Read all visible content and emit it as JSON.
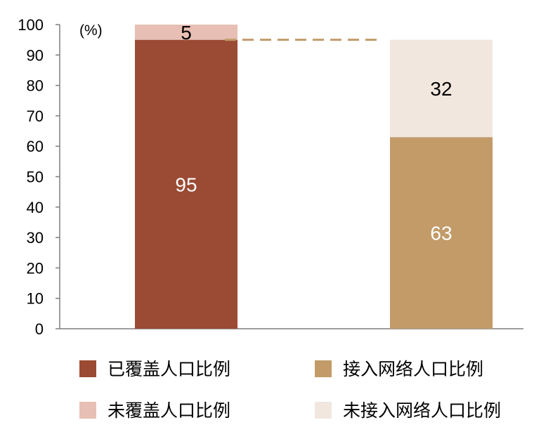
{
  "chart_data": {
    "type": "bar",
    "stacked": true,
    "categories": [
      "",
      ""
    ],
    "unit_label": "(%)",
    "ylim": [
      0,
      100
    ],
    "yticks": [
      0,
      10,
      20,
      30,
      40,
      50,
      60,
      70,
      80,
      90,
      100
    ],
    "grid": false,
    "legend_position": "bottom",
    "series": [
      {
        "name": "已覆盖人口比例",
        "values": [
          95,
          null
        ],
        "color": "#9b4a33",
        "label_color": "#ffffff"
      },
      {
        "name": "未覆盖人口比例",
        "values": [
          5,
          null
        ],
        "color": "#e8bfb4",
        "label_color": "#000000"
      },
      {
        "name": "接入网络人口比例",
        "values": [
          null,
          63
        ],
        "color": "#c29b68",
        "label_color": "#ffffff"
      },
      {
        "name": "未接入网络人口比例",
        "values": [
          null,
          32
        ],
        "color": "#f1e7de",
        "label_color": "#000000"
      }
    ],
    "reference_line": {
      "value": 95,
      "style": "dashed",
      "color": "#c29b68"
    }
  }
}
